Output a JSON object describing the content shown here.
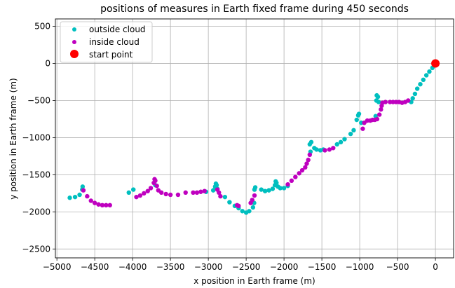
{
  "chart_data": {
    "type": "scatter",
    "title": "positions of measures in Earth fixed frame during 450 seconds",
    "xlabel": "x position in Earth frame (m)",
    "ylabel": "y position in Earth frame (m)",
    "xlim": [
      -5020,
      240
    ],
    "ylim": [
      -2620,
      600
    ],
    "xticks": [
      -5000,
      -4500,
      -4000,
      -3500,
      -3000,
      -2500,
      -2000,
      -1500,
      -1000,
      -500,
      0
    ],
    "yticks": [
      500,
      0,
      -500,
      -1000,
      -1500,
      -2000,
      -2500
    ],
    "xtick_labels": [
      "−5000",
      "−4500",
      "−4000",
      "−3500",
      "−3000",
      "−2500",
      "−2000",
      "−1500",
      "−1000",
      "−500",
      "0"
    ],
    "ytick_labels": [
      "500",
      "0",
      "−500",
      "−1000",
      "−1500",
      "−2000",
      "−2500"
    ],
    "grid": true,
    "legend_position": "top-left",
    "series": [
      {
        "name": "outside cloud",
        "color": "#00bfbf",
        "x": [
          -4830,
          -4760,
          -4700,
          -4665,
          -4660,
          -4050,
          -3990,
          -3700,
          -3030,
          -2935,
          -2910,
          -2900,
          -2890,
          -2880,
          -2780,
          -2720,
          -2650,
          -2600,
          -2550,
          -2500,
          -2460,
          -2410,
          -2395,
          -2390,
          -2380,
          -2300,
          -2250,
          -2200,
          -2150,
          -2120,
          -2110,
          -2100,
          -2080,
          -2050,
          -2000,
          -1950,
          -1650,
          -1660,
          -1640,
          -1600,
          -1570,
          -1520,
          -1480,
          -1300,
          -1250,
          -1200,
          -1120,
          -1080,
          -1040,
          -1020,
          -1010,
          -980,
          -790,
          -780,
          -775,
          -760,
          -750,
          -320,
          -300,
          -270,
          -240,
          -200,
          -160,
          -120,
          -80,
          -40,
          -20
        ],
        "y": [
          -1810,
          -1800,
          -1770,
          -1700,
          -1660,
          -1740,
          -1700,
          -1640,
          -1730,
          -1710,
          -1660,
          -1620,
          -1640,
          -1690,
          -1800,
          -1870,
          -1920,
          -1950,
          -1990,
          -2010,
          -1990,
          -1940,
          -1880,
          -1700,
          -1670,
          -1700,
          -1720,
          -1710,
          -1690,
          -1640,
          -1590,
          -1610,
          -1660,
          -1680,
          -1680,
          -1650,
          -1190,
          -1090,
          -1060,
          -1140,
          -1160,
          -1170,
          -1160,
          -1090,
          -1060,
          -1020,
          -950,
          -900,
          -760,
          -700,
          -680,
          -800,
          -710,
          -500,
          -430,
          -450,
          -520,
          -520,
          -470,
          -410,
          -340,
          -280,
          -220,
          -160,
          -110,
          -60,
          -30
        ]
      },
      {
        "name": "inside cloud",
        "color": "#bf00bf",
        "x": [
          -4650,
          -4600,
          -4550,
          -4500,
          -4450,
          -4400,
          -4350,
          -4300,
          -3950,
          -3900,
          -3850,
          -3800,
          -3760,
          -3720,
          -3710,
          -3700,
          -3680,
          -3660,
          -3620,
          -3560,
          -3500,
          -3400,
          -3300,
          -3200,
          -3150,
          -3100,
          -3050,
          -2880,
          -2860,
          -2840,
          -2620,
          -2600,
          -2440,
          -2420,
          -2390,
          -1950,
          -1900,
          -1850,
          -1800,
          -1760,
          -1720,
          -1700,
          -1680,
          -1660,
          -1460,
          -1400,
          -1350,
          -960,
          -940,
          -900,
          -860,
          -830,
          -800,
          -770,
          -740,
          -720,
          -710,
          -700,
          -660,
          -600,
          -560,
          -520,
          -480,
          -440,
          -400,
          -360
        ],
        "y": [
          -1710,
          -1790,
          -1850,
          -1880,
          -1900,
          -1910,
          -1910,
          -1910,
          -1800,
          -1780,
          -1750,
          -1720,
          -1680,
          -1610,
          -1560,
          -1580,
          -1650,
          -1710,
          -1740,
          -1760,
          -1770,
          -1770,
          -1740,
          -1740,
          -1740,
          -1730,
          -1720,
          -1700,
          -1740,
          -1790,
          -1910,
          -1920,
          -1880,
          -1840,
          -1780,
          -1630,
          -1580,
          -1530,
          -1480,
          -1440,
          -1400,
          -1350,
          -1300,
          -1230,
          -1170,
          -1160,
          -1140,
          -880,
          -800,
          -770,
          -770,
          -760,
          -760,
          -750,
          -690,
          -620,
          -570,
          -530,
          -520,
          -520,
          -520,
          -520,
          -520,
          -530,
          -520,
          -500
        ]
      },
      {
        "name": "start point",
        "color": "#ff0000",
        "x": [
          0
        ],
        "y": [
          0
        ]
      }
    ]
  }
}
